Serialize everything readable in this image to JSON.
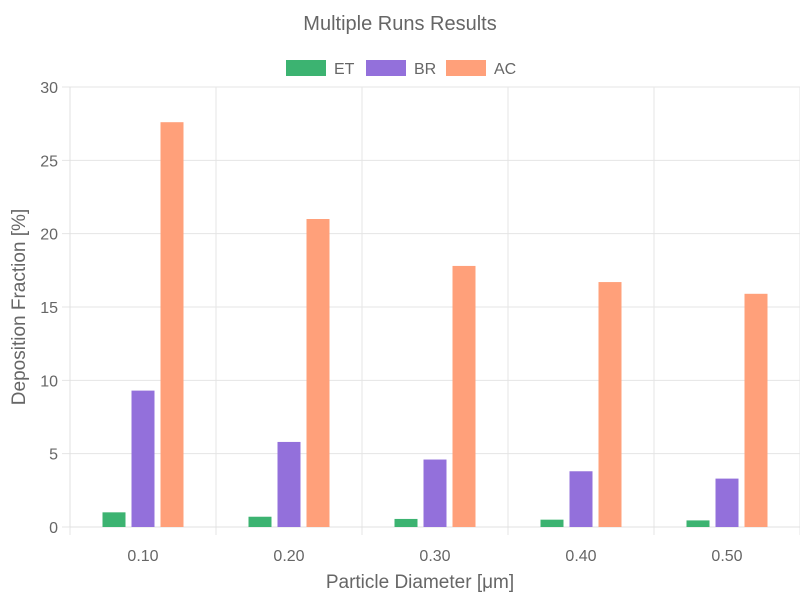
{
  "chart_data": {
    "type": "bar",
    "title": "Multiple Runs Results",
    "xlabel": "Particle Diameter [μm]",
    "ylabel": "Deposition Fraction [%]",
    "categories": [
      "0.10",
      "0.20",
      "0.30",
      "0.40",
      "0.50"
    ],
    "ylim": [
      0,
      30
    ],
    "yticks": [
      0,
      5,
      10,
      15,
      20,
      25,
      30
    ],
    "ytick_labels": [
      "0",
      "5",
      "10",
      "15",
      "20",
      "25",
      "30"
    ],
    "grid": true,
    "legend_position": "top-center",
    "series": [
      {
        "name": "ET",
        "color": "#3cb371",
        "values": [
          1.0,
          0.7,
          0.55,
          0.5,
          0.45
        ]
      },
      {
        "name": "BR",
        "color": "#9370db",
        "values": [
          9.3,
          5.8,
          4.6,
          3.8,
          3.3
        ]
      },
      {
        "name": "AC",
        "color": "#ffa07a",
        "values": [
          27.6,
          21.0,
          17.8,
          16.7,
          15.9
        ]
      }
    ]
  }
}
